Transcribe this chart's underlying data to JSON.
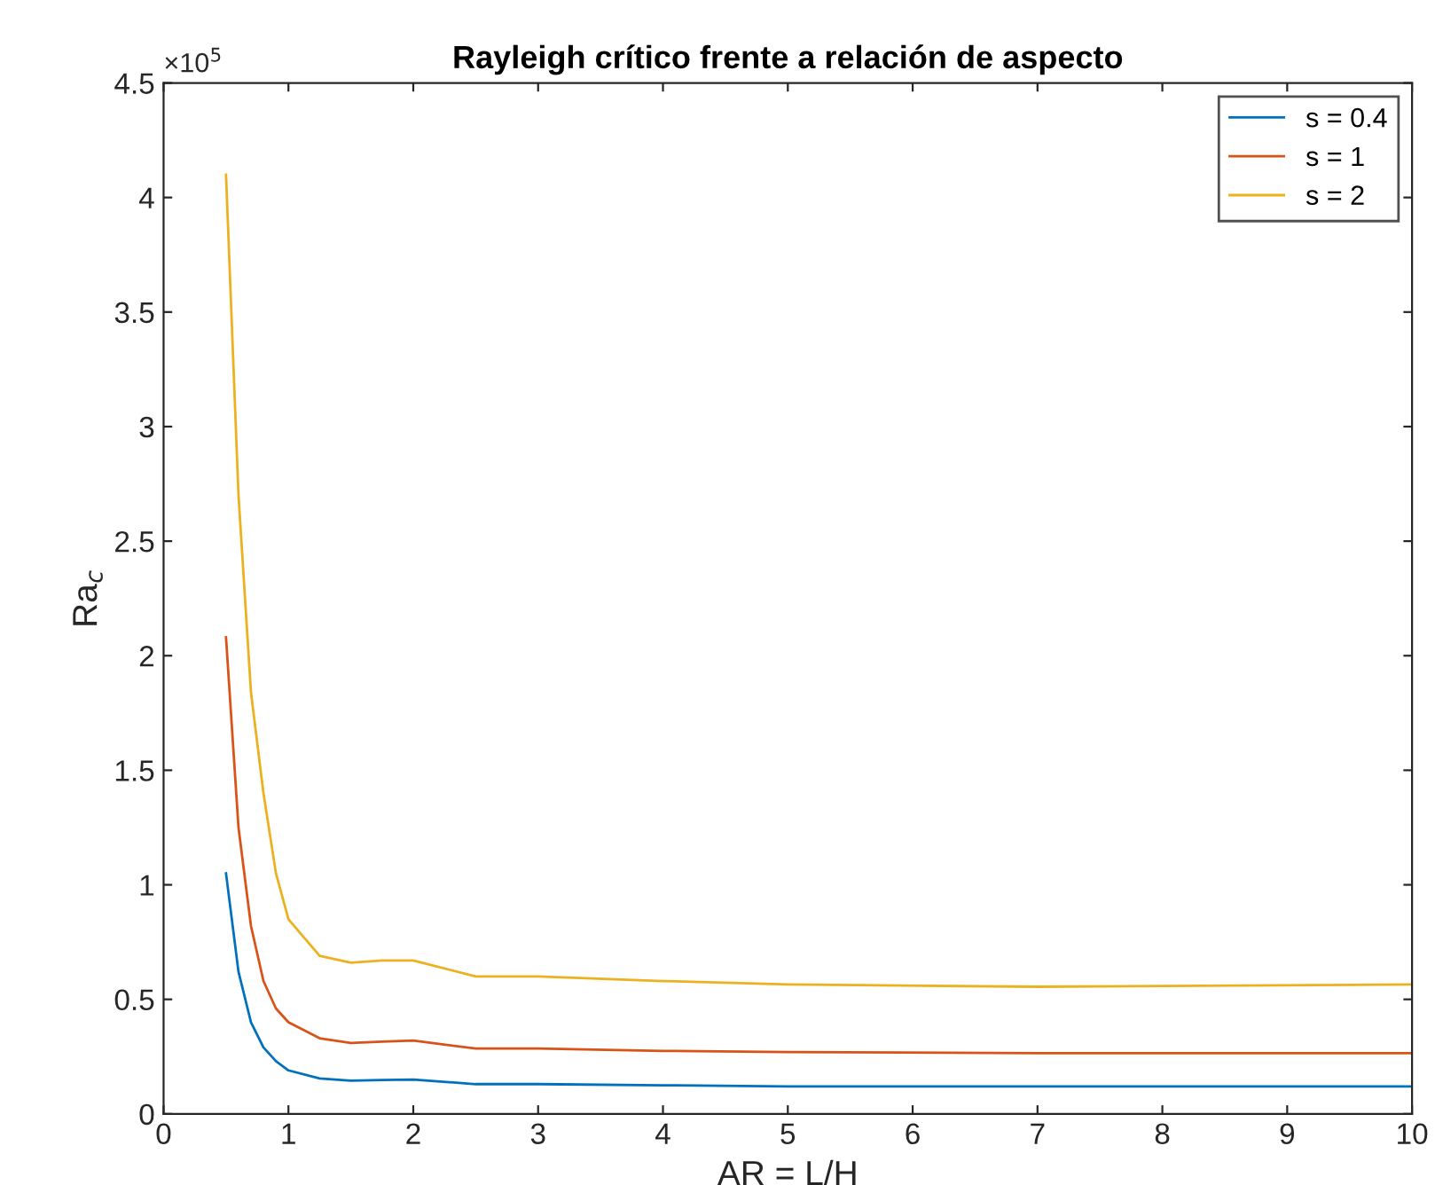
{
  "chart_data": {
    "type": "line",
    "title": "Rayleigh crítico frente a relación de aspecto",
    "xlabel": "AR = L/H",
    "ylabel": "Ra$_{c}$",
    "annotations": [
      "×10$^{5}$"
    ],
    "x": [
      0.5,
      0.6,
      0.7,
      0.8,
      0.9,
      1.0,
      1.25,
      1.5,
      1.75,
      2.0,
      2.5,
      3,
      4,
      5,
      7,
      10
    ],
    "series": [
      {
        "name": "s = 0.4",
        "color": "#0072bd",
        "values": [
          1.05,
          0.62,
          0.4,
          0.29,
          0.23,
          0.19,
          0.155,
          0.145,
          0.148,
          0.15,
          0.13,
          0.13,
          0.125,
          0.12,
          0.12,
          0.12
        ]
      },
      {
        "name": "s = 1",
        "color": "#d95319",
        "values": [
          2.08,
          1.25,
          0.82,
          0.58,
          0.46,
          0.4,
          0.33,
          0.31,
          0.315,
          0.32,
          0.285,
          0.285,
          0.275,
          0.27,
          0.265,
          0.265
        ]
      },
      {
        "name": "s = 2",
        "color": "#edb120",
        "values": [
          4.1,
          2.7,
          1.84,
          1.4,
          1.05,
          0.85,
          0.69,
          0.66,
          0.67,
          0.67,
          0.6,
          0.6,
          0.58,
          0.565,
          0.555,
          0.565
        ]
      }
    ],
    "xlim": [
      0,
      10
    ],
    "xticks": [
      0,
      1,
      2,
      3,
      4,
      5,
      6,
      7,
      8,
      9,
      10
    ],
    "ylim": [
      0,
      4.5
    ],
    "yticks": [
      0,
      0.5,
      1,
      1.5,
      2,
      2.5,
      3,
      3.5,
      4,
      4.5
    ],
    "grid": false,
    "legend": "top right",
    "marker": "none",
    "line_style": "solid"
  }
}
